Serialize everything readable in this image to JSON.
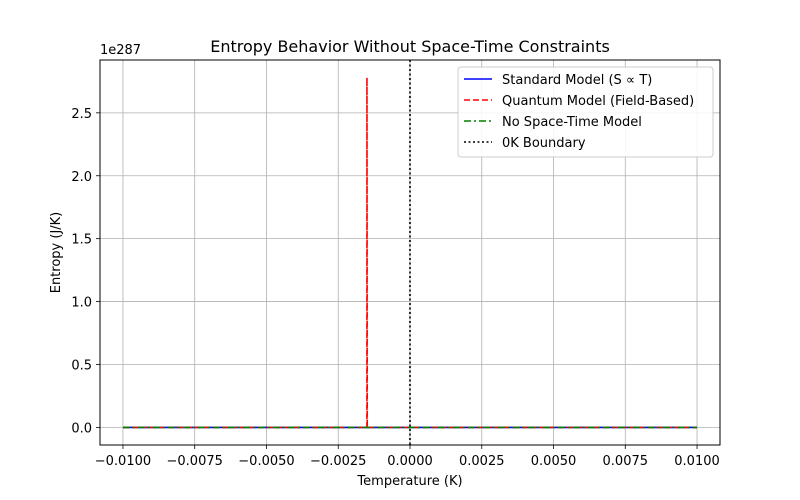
{
  "chart_data": {
    "type": "line",
    "title": "Entropy Behavior Without Space-Time Constraints",
    "xlabel": "Temperature (K)",
    "ylabel": "Entropy (J/K)",
    "offset_label": "1e287",
    "xlim": [
      -0.0108,
      0.0108
    ],
    "ylim": [
      -0.14,
      2.92
    ],
    "y_unit_multiplier": "1e287",
    "xticks": [
      -0.01,
      -0.0075,
      -0.005,
      -0.0025,
      0.0,
      0.0025,
      0.005,
      0.0075,
      0.01
    ],
    "xtick_labels": [
      "−0.0100",
      "−0.0075",
      "−0.0050",
      "−0.0025",
      "0.0000",
      "0.0025",
      "0.0050",
      "0.0075",
      "0.0100"
    ],
    "yticks": [
      0.0,
      0.5,
      1.0,
      1.5,
      2.0,
      2.5
    ],
    "ytick_labels": [
      "0.0",
      "0.5",
      "1.0",
      "1.5",
      "2.0",
      "2.5"
    ],
    "grid": true,
    "legend_position": "top-right",
    "series": [
      {
        "name": "Standard Model (S ∝ T)",
        "color": "#0000ff",
        "style": "solid",
        "x": [
          -0.01,
          0.01
        ],
        "y": [
          0.0,
          0.0
        ]
      },
      {
        "name": "Quantum Model (Field-Based)",
        "color": "#ff0000",
        "style": "dashed",
        "x": [
          -0.01,
          -0.0015,
          -0.0015,
          -0.00149,
          0.01
        ],
        "y": [
          0.0,
          0.0,
          2.78,
          0.0,
          0.0
        ]
      },
      {
        "name": "No Space-Time Model",
        "color": "#008000",
        "style": "dashdot",
        "x": [
          -0.01,
          0.01
        ],
        "y": [
          0.0,
          0.0
        ]
      },
      {
        "name": "0K Boundary",
        "color": "#000000",
        "style": "dotted",
        "vline_x": 0.0
      }
    ]
  }
}
